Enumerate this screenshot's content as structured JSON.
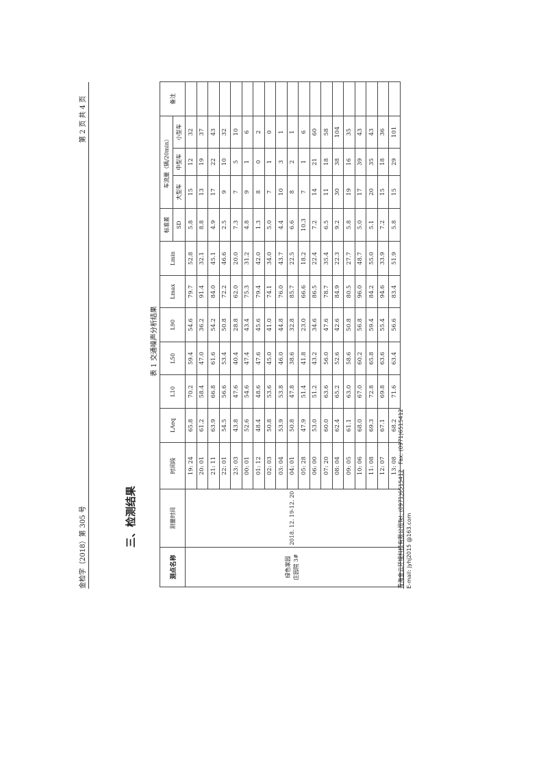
{
  "header": {
    "doc_number": "金检字（2018）第 305 号",
    "page_info": "第 2 页 共 4 页"
  },
  "section_title": "三、检测结果",
  "table_caption": "表 1  交通噪声分析结果",
  "table": {
    "headers": {
      "point_name": "测点名称",
      "measure_time": "测量时间",
      "period": "时间段",
      "laeq": "LAeq",
      "l10": "L10",
      "l50": "L50",
      "l90": "L90",
      "lmax": "Lmax",
      "lmin": "Lmin",
      "sd_top": "标准差",
      "sd_bottom": "SD",
      "traffic": "车流量（辆/20min）",
      "large": "大型车",
      "medium": "中型车",
      "small": "小型车",
      "remark": "备注"
    },
    "point_name_line1": "绿色家园",
    "point_name_line2": "庄园院 3#",
    "measure_time": "2018. 12. 19-12. 20",
    "rows": [
      [
        "19: 24",
        "65.8",
        "70.2",
        "59.4",
        "54.6",
        "79.7",
        "52.8",
        "5.8",
        "15",
        "12",
        "32"
      ],
      [
        "20: 01",
        "61.2",
        "58.4",
        "47.0",
        "36.2",
        "91.4",
        "32.1",
        "8.8",
        "13",
        "19",
        "37"
      ],
      [
        "21: 11",
        "63.9",
        "66.8",
        "61.6",
        "54.2",
        "84.0",
        "45.1",
        "4.9",
        "17",
        "22",
        "43"
      ],
      [
        "22: 01",
        "54.5",
        "56.6",
        "53.4",
        "50.8",
        "72.2",
        "46.6",
        "2.5",
        "9",
        "10",
        "32"
      ],
      [
        "23: 03",
        "43.8",
        "47.6",
        "40.4",
        "28.8",
        "62.0",
        "20.0",
        "7.3",
        "7",
        "5",
        "10"
      ],
      [
        "00: 01",
        "52.6",
        "54.6",
        "47.4",
        "43.4",
        "75.3",
        "31.2",
        "4.8",
        "9",
        "1",
        "6"
      ],
      [
        "01: 12",
        "48.4",
        "48.6",
        "47.6",
        "45.6",
        "79.4",
        "42.0",
        "1.3",
        "8",
        "0",
        "2"
      ],
      [
        "02: 03",
        "50.8",
        "53.6",
        "45.0",
        "41.0",
        "74.1",
        "34.0",
        "5.0",
        "7",
        "1",
        "0"
      ],
      [
        "03: 04",
        "53.9",
        "53.8",
        "46.0",
        "44.8",
        "76.0",
        "43.7",
        "4.4",
        "10",
        "3",
        "1"
      ],
      [
        "04: 01",
        "50.8",
        "47.8",
        "38.6",
        "32.8",
        "85.7",
        "22.5",
        "6.6",
        "8",
        "2",
        "1"
      ],
      [
        "05: 28",
        "47.9",
        "51.4",
        "41.8",
        "23.0",
        "66.6",
        "18.2",
        "10.3",
        "7",
        "1",
        "6"
      ],
      [
        "06: 00",
        "53.0",
        "51.2",
        "43.2",
        "34.6",
        "86.5",
        "22.4",
        "7.2",
        "14",
        "21",
        "60"
      ],
      [
        "07: 20",
        "60.0",
        "63.6",
        "56.0",
        "47.6",
        "78.7",
        "35.4",
        "6.5",
        "11",
        "18",
        "58"
      ],
      [
        "08: 04",
        "62.4",
        "65.2",
        "52.6",
        "42.6",
        "84.9",
        "22.3",
        "9.2",
        "30",
        "38",
        "104"
      ],
      [
        "09: 05",
        "61.1",
        "63.0",
        "58.6",
        "50.8",
        "80.5",
        "27.7",
        "5.8",
        "19",
        "16",
        "35"
      ],
      [
        "10: 06",
        "68.0",
        "67.0",
        "60.2",
        "56.8",
        "96.0",
        "48.7",
        "5.0",
        "17",
        "39",
        "43"
      ],
      [
        "11: 08",
        "69.3",
        "72.8",
        "65.8",
        "59.4",
        "84.2",
        "55.0",
        "5.1",
        "20",
        "35",
        "43"
      ],
      [
        "12: 07",
        "67.1",
        "69.8",
        "63.6",
        "55.4",
        "94.6",
        "33.9",
        "7.2",
        "15",
        "18",
        "36"
      ],
      [
        "13: 08",
        "68.2",
        "71.6",
        "63.4",
        "56.6",
        "83.4",
        "51.9",
        "5.8",
        "15",
        "29",
        "101"
      ]
    ]
  },
  "footer": {
    "company": "青海金云环境科技有限公司",
    "tel": "Tel:  (0971)6515412",
    "fax": "Fax:  (0971)6515412",
    "email": "E-mail:  jyhj2015 @163.com"
  }
}
